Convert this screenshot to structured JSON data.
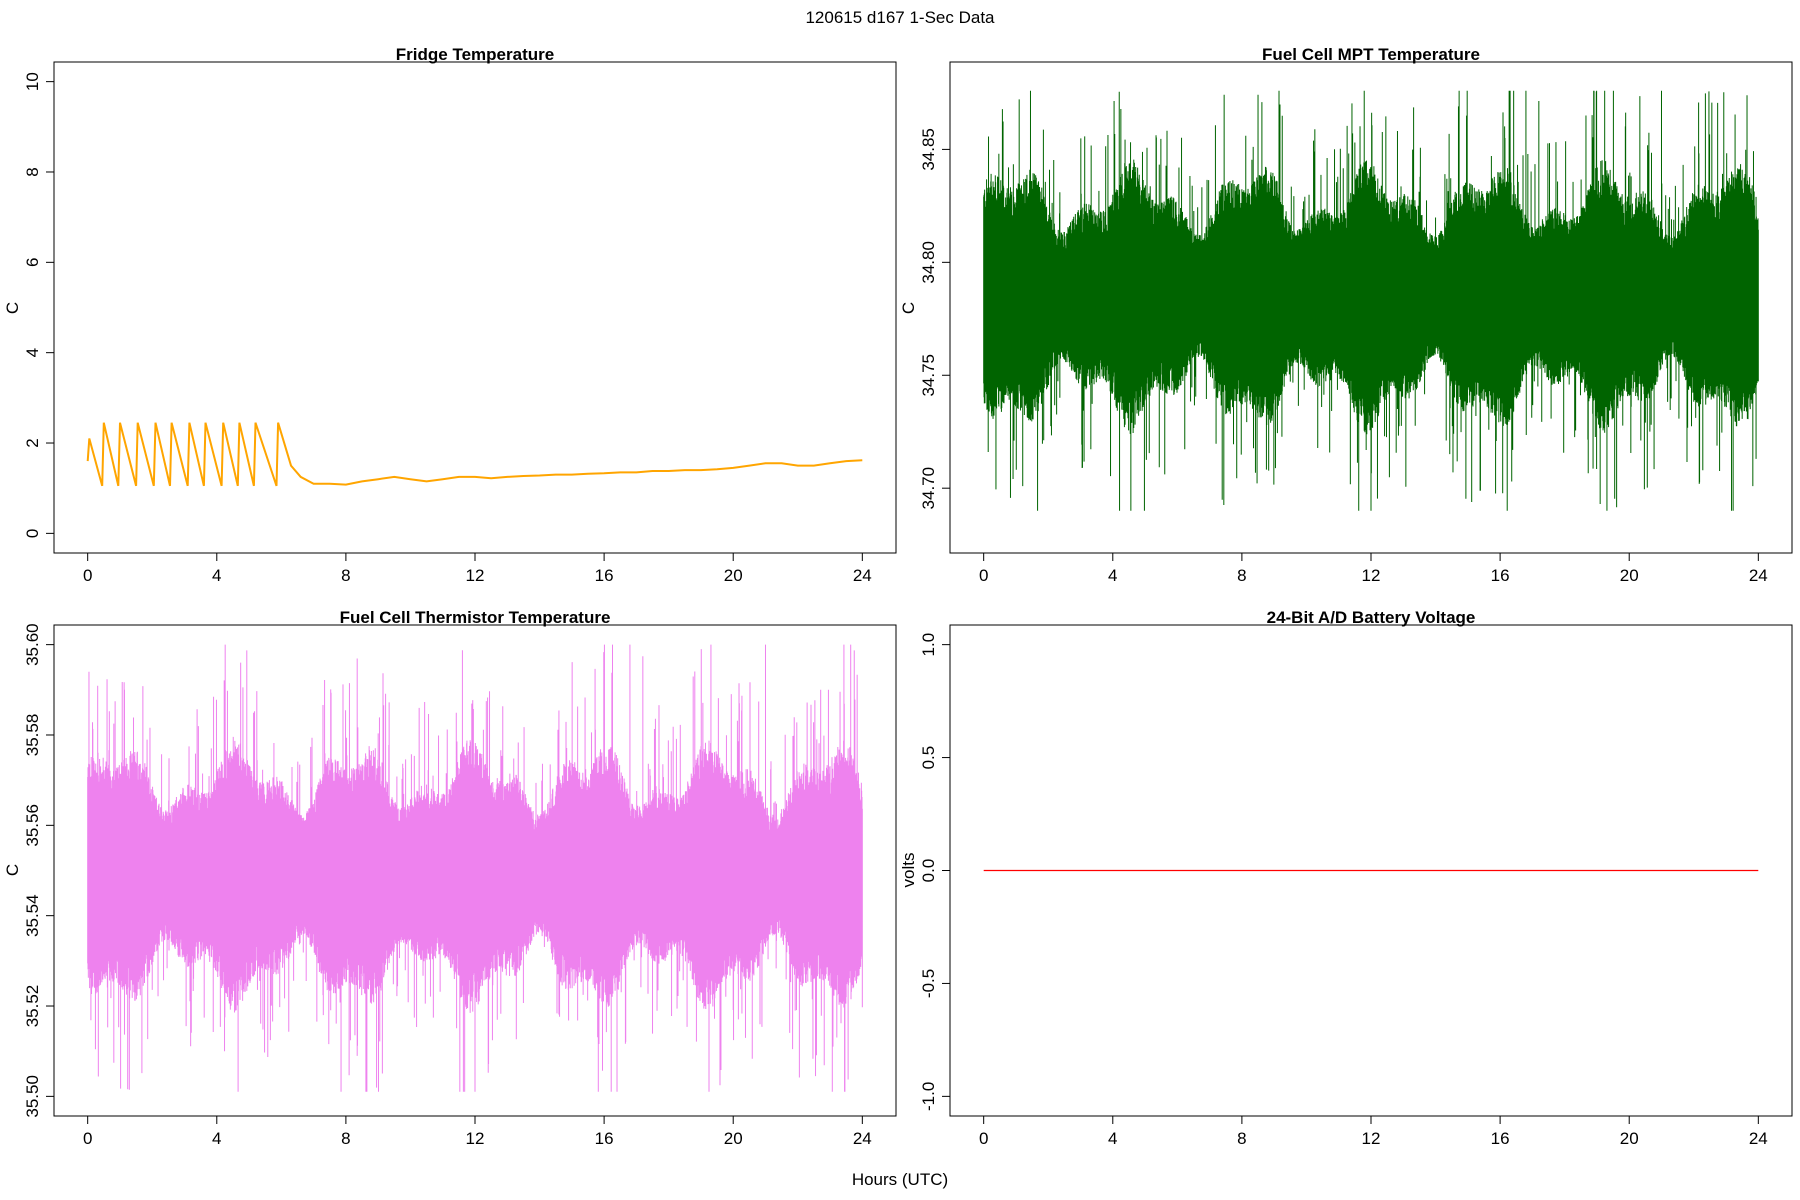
{
  "figure": {
    "main_title": "120615   d167   1-Sec Data",
    "xlabel": "Hours (UTC)"
  },
  "chart_data": [
    {
      "id": "fridge",
      "type": "line",
      "title": "Fridge Temperature",
      "ylabel": "C",
      "xlim": [
        0,
        24
      ],
      "ylim": [
        0,
        10
      ],
      "xticks": [
        0,
        4,
        8,
        12,
        16,
        20,
        24
      ],
      "yticks": [
        0,
        2,
        4,
        6,
        8,
        10
      ],
      "ytick_labels": [
        "0",
        "2",
        "4",
        "6",
        "8",
        "10"
      ],
      "color": "#FFA500",
      "series": [
        {
          "x": [
            0.0,
            0.05,
            0.45,
            0.5,
            0.95,
            1.0,
            1.5,
            1.55,
            2.05,
            2.1,
            2.55,
            2.6,
            3.1,
            3.15,
            3.6,
            3.65,
            4.15,
            4.2,
            4.65,
            4.7,
            5.15,
            5.2,
            5.85,
            5.9,
            6.3,
            6.6,
            7.0,
            7.5,
            8.0,
            8.5,
            9.0,
            9.5,
            10.0,
            10.5,
            11.0,
            11.5,
            12.0,
            12.5,
            13.0,
            13.5,
            14.0,
            14.5,
            15.0,
            15.5,
            16.0,
            16.5,
            17.0,
            17.5,
            18.0,
            18.5,
            19.0,
            19.5,
            20.0,
            20.5,
            21.0,
            21.5,
            22.0,
            22.5,
            23.0,
            23.5,
            24.0
          ],
          "y": [
            1.6,
            2.1,
            1.05,
            2.45,
            1.05,
            2.45,
            1.05,
            2.45,
            1.05,
            2.45,
            1.05,
            2.45,
            1.05,
            2.45,
            1.05,
            2.45,
            1.05,
            2.45,
            1.05,
            2.45,
            1.05,
            2.45,
            1.05,
            2.45,
            1.5,
            1.25,
            1.1,
            1.1,
            1.08,
            1.15,
            1.2,
            1.25,
            1.2,
            1.15,
            1.2,
            1.25,
            1.25,
            1.22,
            1.25,
            1.27,
            1.28,
            1.3,
            1.3,
            1.32,
            1.33,
            1.35,
            1.35,
            1.38,
            1.38,
            1.4,
            1.4,
            1.42,
            1.45,
            1.5,
            1.55,
            1.55,
            1.5,
            1.5,
            1.55,
            1.6,
            1.62
          ]
        }
      ]
    },
    {
      "id": "mpt",
      "type": "line",
      "title": "Fuel Cell MPT Temperature",
      "ylabel": "C",
      "xlim": [
        0,
        24
      ],
      "ylim": [
        34.68,
        34.88
      ],
      "xticks": [
        0,
        4,
        8,
        12,
        16,
        20,
        24
      ],
      "yticks": [
        34.7,
        34.75,
        34.8,
        34.85
      ],
      "ytick_labels": [
        "34.70",
        "34.75",
        "34.80",
        "34.85"
      ],
      "color": "#006400",
      "noise": {
        "mean": 34.785,
        "core_half_width": 0.04,
        "max_spike_up": 34.876,
        "min_spike_down": 34.69
      }
    },
    {
      "id": "thermistor",
      "type": "line",
      "title": "Fuel Cell Thermistor Temperature",
      "ylabel": "C",
      "xlim": [
        0,
        24
      ],
      "ylim": [
        35.5,
        35.6
      ],
      "xticks": [
        0,
        4,
        8,
        12,
        16,
        20,
        24
      ],
      "yticks": [
        35.5,
        35.52,
        35.54,
        35.56,
        35.58,
        35.6
      ],
      "ytick_labels": [
        "35.50",
        "35.52",
        "35.54",
        "35.56",
        "35.58",
        "35.60"
      ],
      "color": "#EE82EE",
      "noise": {
        "mean": 35.549,
        "core_half_width": 0.02,
        "max_spike_up": 35.6,
        "min_spike_down": 35.501
      }
    },
    {
      "id": "battery",
      "type": "line",
      "title": "24-Bit A/D Battery Voltage",
      "ylabel": "volts",
      "xlim": [
        0,
        24
      ],
      "ylim": [
        -1.0,
        1.0
      ],
      "xticks": [
        0,
        4,
        8,
        12,
        16,
        20,
        24
      ],
      "yticks": [
        -1.0,
        -0.5,
        0.0,
        0.5,
        1.0
      ],
      "ytick_labels": [
        "-1.0",
        "-0.5",
        "0.0",
        "0.5",
        "1.0"
      ],
      "color": "#FF0000",
      "series": [
        {
          "x": [
            0,
            24
          ],
          "y": [
            0,
            0
          ]
        }
      ]
    }
  ]
}
